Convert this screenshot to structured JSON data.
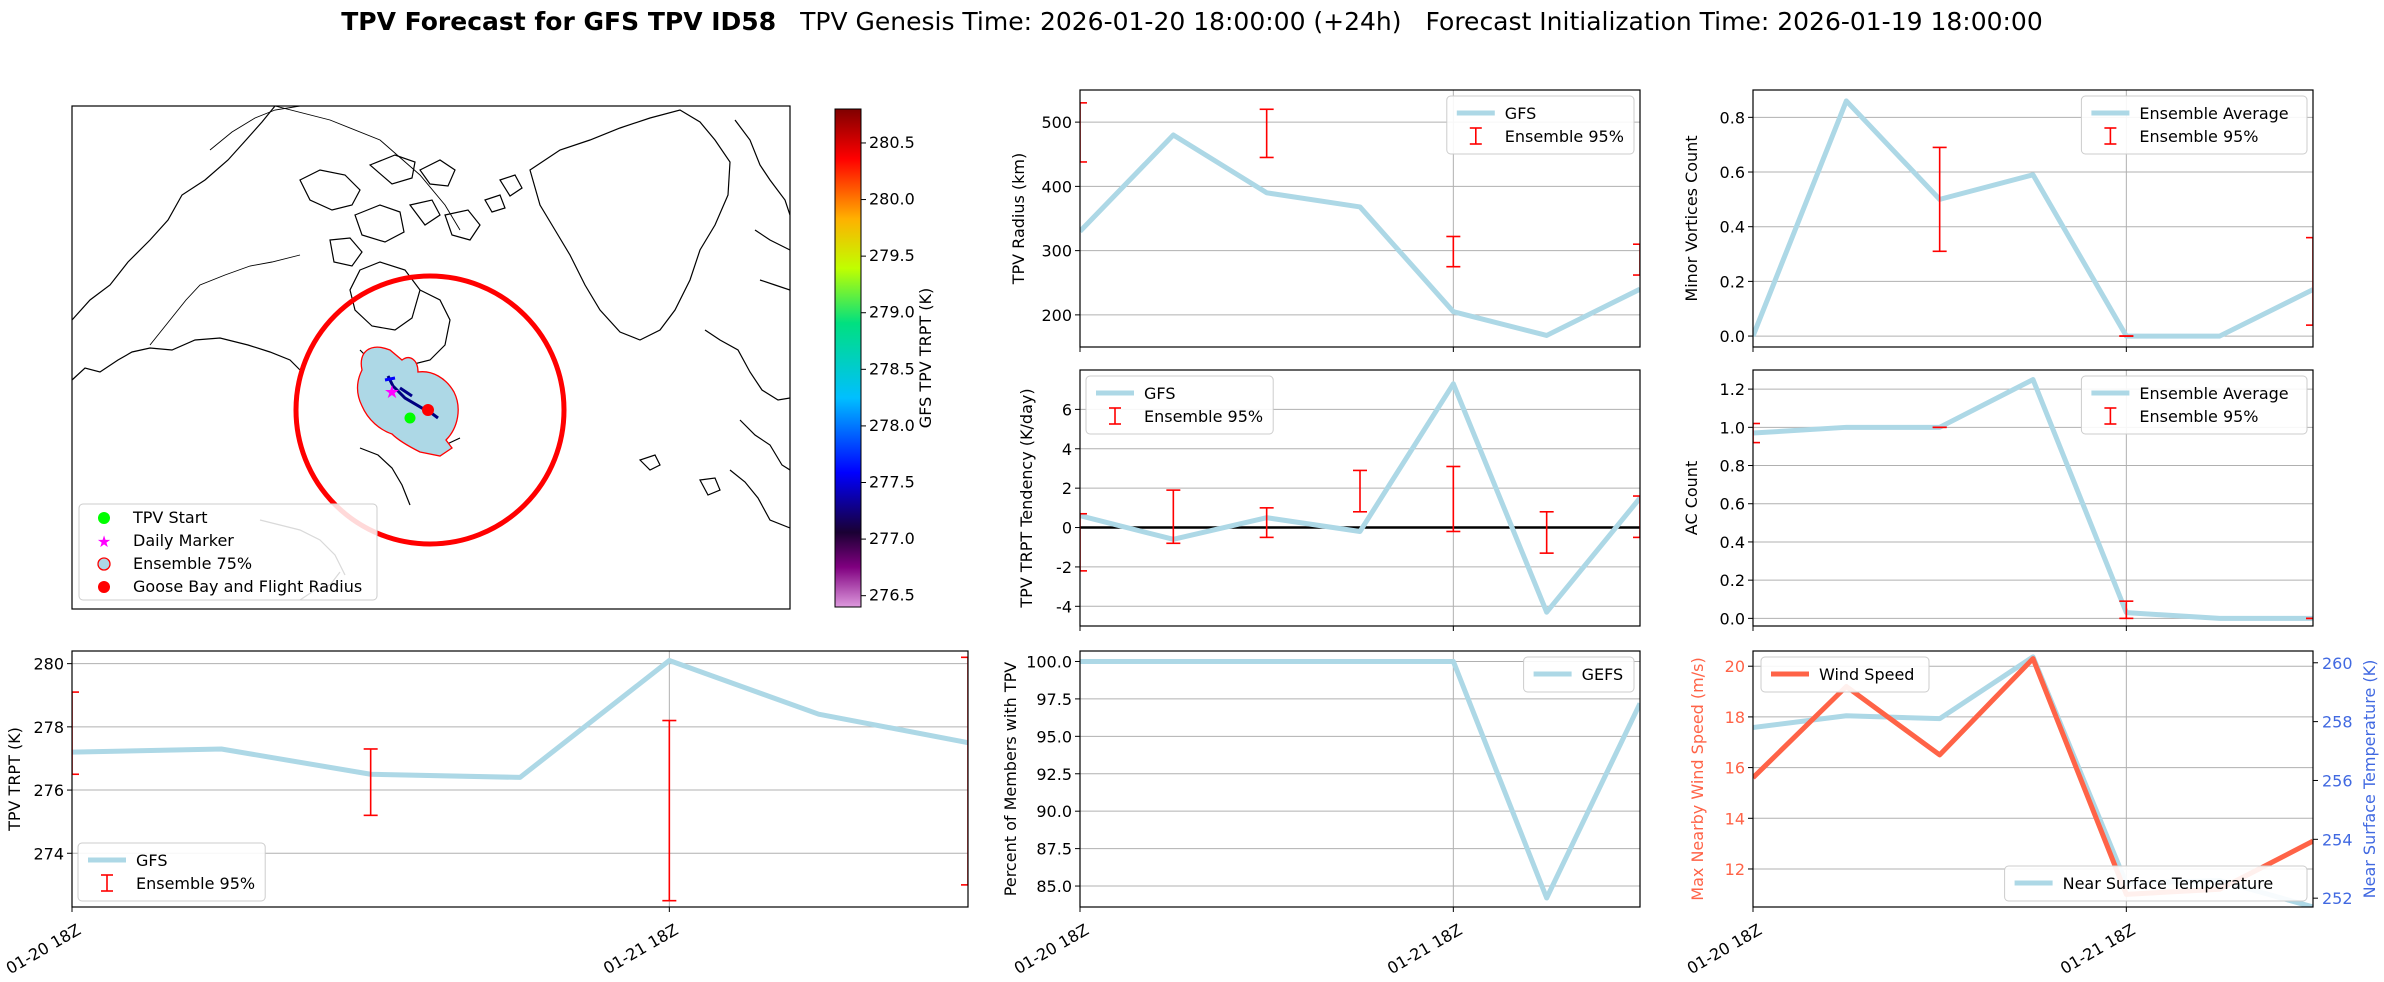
{
  "title": {
    "bold": "TPV Forecast for GFS TPV ID58",
    "genesis": "TPV Genesis Time: 2026-01-20 18:00:00 (+24h)",
    "init": "Forecast Initialization Time: 2026-01-19 18:00:00"
  },
  "colors": {
    "series": "#add8e6",
    "error": "#ff0000",
    "wind": "#ff6347",
    "temp_axis": "#4169e1",
    "start": "#00ff00",
    "marker": "#ff00ff",
    "zero_line": "#000000"
  },
  "map": {
    "legend": [
      "TPV Start",
      "Daily Marker",
      "Ensemble 75%",
      "Goose Bay and Flight Radius"
    ],
    "colorbar": {
      "label": "GFS TPV TRPT (K)",
      "min": 276.4,
      "max": 280.8,
      "ticks": [
        "276.5",
        "277.0",
        "277.5",
        "278.0",
        "278.5",
        "279.0",
        "279.5",
        "280.0",
        "280.5"
      ]
    }
  },
  "time_ticks": [
    "01-20 18Z",
    "01-21 18Z"
  ],
  "chart_data": [
    {
      "id": "radius",
      "type": "line",
      "ylabel": "TPV Radius (km)",
      "ylim": [
        150,
        550
      ],
      "yticks": [
        "200",
        "300",
        "400",
        "500"
      ],
      "x": [
        0,
        1,
        2,
        3,
        4,
        5,
        6
      ],
      "series": [
        {
          "name": "GFS",
          "values": [
            330,
            480,
            390,
            368,
            205,
            168,
            240
          ]
        }
      ],
      "errorbars": [
        {
          "x": 0,
          "low": 438,
          "high": 530
        },
        {
          "x": 2,
          "low": 445,
          "high": 520
        },
        {
          "x": 4,
          "low": 275,
          "high": 322
        },
        {
          "x": 6,
          "low": 262,
          "high": 310
        }
      ],
      "legend": [
        "GFS",
        "Ensemble 95%"
      ],
      "legend_pos": "top-right"
    },
    {
      "id": "minor",
      "type": "line",
      "ylabel": "Minor Vortices Count",
      "ylim": [
        -0.04,
        0.9
      ],
      "yticks": [
        "0.0",
        "0.2",
        "0.4",
        "0.6",
        "0.8"
      ],
      "x": [
        0,
        1,
        2,
        3,
        4,
        5,
        6
      ],
      "series": [
        {
          "name": "Ensemble Average",
          "values": [
            0.0,
            0.86,
            0.5,
            0.59,
            0.0,
            0.0,
            0.17
          ]
        }
      ],
      "errorbars": [
        {
          "x": 2,
          "low": 0.31,
          "high": 0.69
        },
        {
          "x": 4,
          "low": 0.0,
          "high": 0.0
        },
        {
          "x": 6,
          "low": 0.04,
          "high": 0.36
        }
      ],
      "legend": [
        "Ensemble Average",
        "Ensemble 95%"
      ],
      "legend_pos": "top-right"
    },
    {
      "id": "tendency",
      "type": "line",
      "ylabel": "TPV TRPT Tendency (K/day)",
      "ylim": [
        -5,
        8
      ],
      "yticks": [
        "-4",
        "-2",
        "0",
        "2",
        "4",
        "6"
      ],
      "zero_line": true,
      "x": [
        0,
        1,
        2,
        3,
        4,
        5,
        6
      ],
      "series": [
        {
          "name": "GFS",
          "values": [
            0.6,
            -0.6,
            0.5,
            -0.2,
            7.3,
            -4.3,
            1.5
          ]
        }
      ],
      "errorbars": [
        {
          "x": 0,
          "low": -2.2,
          "high": 0.7
        },
        {
          "x": 1,
          "low": -0.8,
          "high": 1.9
        },
        {
          "x": 2,
          "low": -0.5,
          "high": 1.0
        },
        {
          "x": 3,
          "low": 0.8,
          "high": 2.9
        },
        {
          "x": 4,
          "low": -0.2,
          "high": 3.1
        },
        {
          "x": 5,
          "low": -1.3,
          "high": 0.8
        },
        {
          "x": 6,
          "low": -0.5,
          "high": 1.6
        }
      ],
      "legend": [
        "GFS",
        "Ensemble 95%"
      ],
      "legend_pos": "top-left"
    },
    {
      "id": "ac",
      "type": "line",
      "ylabel": "AC Count",
      "ylim": [
        -0.04,
        1.3
      ],
      "yticks": [
        "0.0",
        "0.2",
        "0.4",
        "0.6",
        "0.8",
        "1.0",
        "1.2"
      ],
      "x": [
        0,
        1,
        2,
        3,
        4,
        5,
        6
      ],
      "series": [
        {
          "name": "Ensemble Average",
          "values": [
            0.97,
            1.0,
            1.0,
            1.25,
            0.03,
            0.0,
            0.0
          ]
        }
      ],
      "errorbars": [
        {
          "x": 0,
          "low": 0.92,
          "high": 1.02
        },
        {
          "x": 2,
          "low": 1.0,
          "high": 1.0
        },
        {
          "x": 4,
          "low": 0.0,
          "high": 0.09
        },
        {
          "x": 6,
          "low": 0.0,
          "high": 0.0
        }
      ],
      "legend": [
        "Ensemble Average",
        "Ensemble 95%"
      ],
      "legend_pos": "top-right"
    },
    {
      "id": "trpt",
      "type": "line",
      "ylabel": "TPV TRPT (K)",
      "ylim": [
        272.3,
        280.4
      ],
      "yticks": [
        "274",
        "276",
        "278",
        "280"
      ],
      "x": [
        0,
        1,
        2,
        3,
        4,
        5,
        6
      ],
      "series": [
        {
          "name": "GFS",
          "values": [
            277.2,
            277.3,
            276.5,
            276.4,
            280.1,
            278.4,
            277.5
          ]
        }
      ],
      "errorbars": [
        {
          "x": 0,
          "low": 276.5,
          "high": 279.1
        },
        {
          "x": 2,
          "low": 275.2,
          "high": 277.3
        },
        {
          "x": 4,
          "low": 272.5,
          "high": 278.2
        },
        {
          "x": 6,
          "low": 273.0,
          "high": 280.2
        }
      ],
      "legend": [
        "GFS",
        "Ensemble 95%"
      ],
      "legend_pos": "bottom-left"
    },
    {
      "id": "members",
      "type": "line",
      "ylabel": "Percent of Members with TPV",
      "ylim": [
        83.6,
        100.7
      ],
      "yticks": [
        "85.0",
        "87.5",
        "90.0",
        "92.5",
        "95.0",
        "97.5",
        "100.0"
      ],
      "x": [
        0,
        1,
        2,
        3,
        4,
        5,
        6
      ],
      "series": [
        {
          "name": "GEFS",
          "values": [
            100,
            100,
            100,
            100,
            100,
            84.2,
            97.2
          ]
        }
      ],
      "errorbars": [],
      "legend": [
        "GEFS"
      ],
      "legend_pos": "top-right"
    },
    {
      "id": "wind_temp",
      "type": "line",
      "ylabel": "Max Nearby Wind Speed (m/s)",
      "y2label": "Near Surface Temperature (K)",
      "ylim": [
        10.5,
        20.6
      ],
      "yticks": [
        "12",
        "14",
        "16",
        "18",
        "20"
      ],
      "y2lim": [
        251.7,
        260.4
      ],
      "y2ticks": [
        "252",
        "254",
        "256",
        "258",
        "260"
      ],
      "x": [
        0,
        1,
        2,
        3,
        4,
        5,
        6
      ],
      "series": [
        {
          "name": "Wind Speed",
          "axis": "left",
          "values": [
            15.6,
            19.2,
            16.5,
            20.3,
            11.0,
            11.2,
            13.1
          ]
        },
        {
          "name": "Near Surface Temperature",
          "axis": "right",
          "values": [
            257.8,
            258.2,
            258.1,
            260.2,
            252.5,
            252.6,
            251.7
          ]
        }
      ],
      "legend": [
        "Wind Speed",
        "Near Surface Temperature"
      ],
      "legend_pos": "top-left / bottom-right"
    }
  ]
}
